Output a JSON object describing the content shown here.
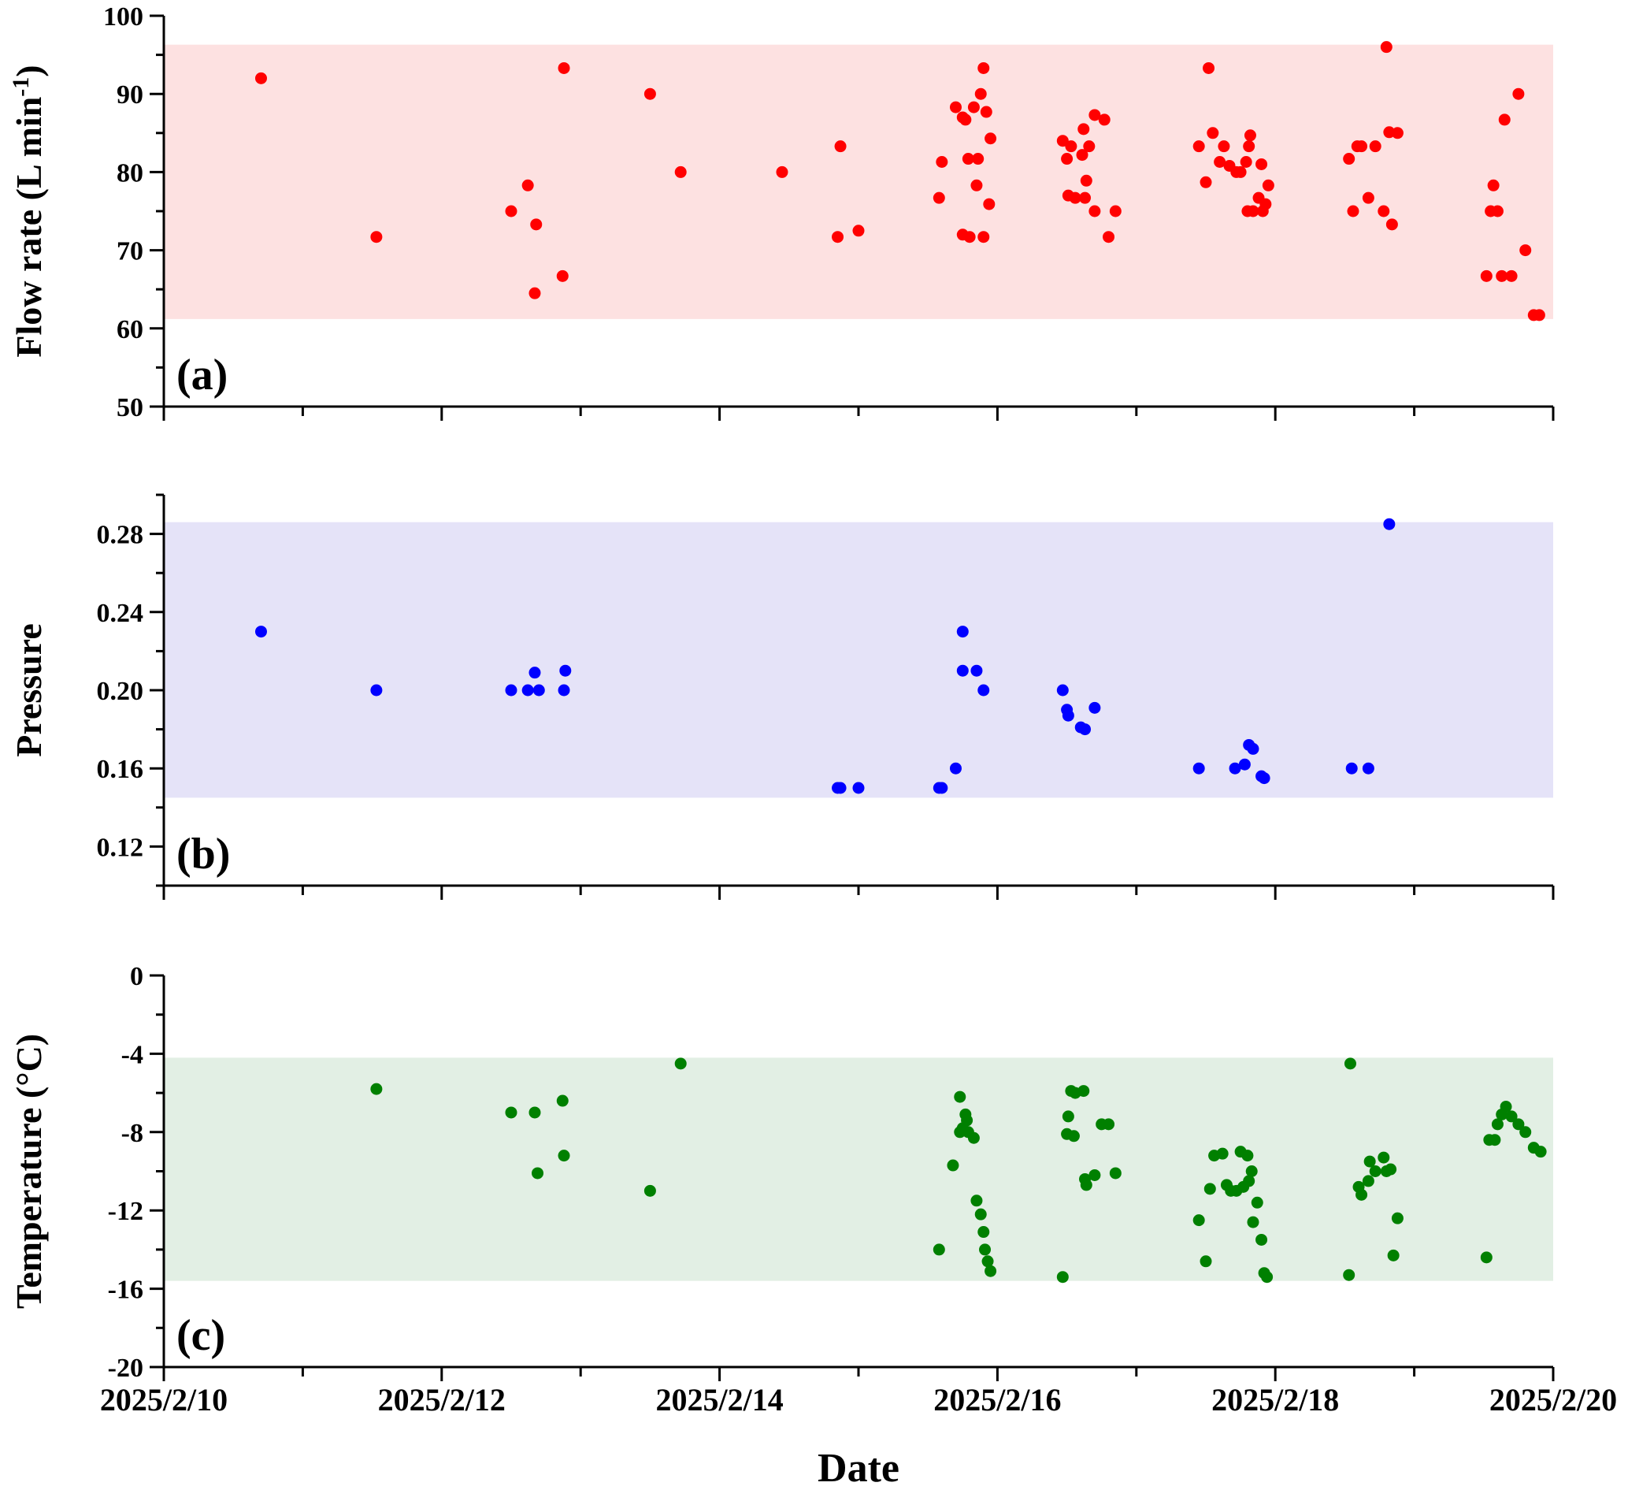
{
  "chart_data": [
    {
      "type": "scatter",
      "panel_label": "(a)",
      "ylabel": "Flow rate (L min",
      "ylabel_sup": "-1",
      "ylim": [
        50,
        100
      ],
      "yticks": [
        {
          "value": 50,
          "label": "50"
        },
        {
          "value": 60,
          "label": "60"
        },
        {
          "value": 70,
          "label": "70"
        },
        {
          "value": 80,
          "label": "80"
        },
        {
          "value": 90,
          "label": "90"
        },
        {
          "value": 100,
          "label": "100"
        }
      ],
      "band": [
        61.2,
        96.3
      ],
      "color": "#ff0000",
      "band_color": "#fde1e1",
      "points": [
        [
          10.7,
          92
        ],
        [
          11.53,
          71.7
        ],
        [
          12.5,
          75
        ],
        [
          12.62,
          78.3
        ],
        [
          12.67,
          64.5
        ],
        [
          12.68,
          73.3
        ],
        [
          12.87,
          66.7
        ],
        [
          12.88,
          93.3
        ],
        [
          13.5,
          90
        ],
        [
          13.72,
          80
        ],
        [
          14.45,
          80
        ],
        [
          14.85,
          71.7
        ],
        [
          14.87,
          83.3
        ],
        [
          15.0,
          72.5
        ],
        [
          15.58,
          76.7
        ],
        [
          15.6,
          81.3
        ],
        [
          15.7,
          88.3
        ],
        [
          15.75,
          72
        ],
        [
          15.75,
          87
        ],
        [
          15.77,
          86.7
        ],
        [
          15.79,
          81.7
        ],
        [
          15.8,
          71.7
        ],
        [
          15.83,
          88.3
        ],
        [
          15.85,
          78.3
        ],
        [
          15.86,
          81.7
        ],
        [
          15.88,
          90
        ],
        [
          15.9,
          71.7
        ],
        [
          15.9,
          93.3
        ],
        [
          15.92,
          87.7
        ],
        [
          15.94,
          75.9
        ],
        [
          15.95,
          84.3
        ],
        [
          16.47,
          84
        ],
        [
          16.5,
          81.7
        ],
        [
          16.51,
          77
        ],
        [
          16.53,
          83.3
        ],
        [
          16.56,
          76.7
        ],
        [
          16.61,
          82.2
        ],
        [
          16.62,
          85.5
        ],
        [
          16.63,
          76.7
        ],
        [
          16.64,
          78.9
        ],
        [
          16.66,
          83.3
        ],
        [
          16.7,
          75
        ],
        [
          16.7,
          87.3
        ],
        [
          16.77,
          86.7
        ],
        [
          16.8,
          71.7
        ],
        [
          16.85,
          75
        ],
        [
          17.45,
          83.3
        ],
        [
          17.5,
          78.7
        ],
        [
          17.52,
          93.3
        ],
        [
          17.55,
          85
        ],
        [
          17.6,
          81.3
        ],
        [
          17.63,
          83.3
        ],
        [
          17.67,
          80.8
        ],
        [
          17.72,
          80
        ],
        [
          17.75,
          80
        ],
        [
          17.79,
          81.3
        ],
        [
          17.8,
          75
        ],
        [
          17.81,
          83.3
        ],
        [
          17.82,
          84.7
        ],
        [
          17.84,
          75
        ],
        [
          17.88,
          76.7
        ],
        [
          17.9,
          81
        ],
        [
          17.91,
          75
        ],
        [
          17.93,
          75.9
        ],
        [
          17.95,
          78.3
        ],
        [
          18.53,
          81.7
        ],
        [
          18.56,
          75
        ],
        [
          18.59,
          83.3
        ],
        [
          18.62,
          83.3
        ],
        [
          18.67,
          76.7
        ],
        [
          18.72,
          83.3
        ],
        [
          18.78,
          75
        ],
        [
          18.8,
          96
        ],
        [
          18.82,
          85.1
        ],
        [
          18.84,
          73.3
        ],
        [
          18.88,
          85
        ],
        [
          19.52,
          66.7
        ],
        [
          19.55,
          75
        ],
        [
          19.57,
          78.3
        ],
        [
          19.6,
          75
        ],
        [
          19.63,
          66.7
        ],
        [
          19.65,
          86.7
        ],
        [
          19.7,
          66.7
        ],
        [
          19.75,
          90
        ],
        [
          19.8,
          70
        ],
        [
          19.86,
          61.7
        ],
        [
          19.9,
          61.7
        ]
      ]
    },
    {
      "type": "scatter",
      "panel_label": "(b)",
      "ylabel": "Pressure",
      "ylim": [
        0.1,
        0.3
      ],
      "yticks": [
        {
          "value": 0.12,
          "label": "0.12"
        },
        {
          "value": 0.16,
          "label": "0.16"
        },
        {
          "value": 0.2,
          "label": "0.20"
        },
        {
          "value": 0.24,
          "label": "0.24"
        },
        {
          "value": 0.28,
          "label": "0.28"
        }
      ],
      "band": [
        0.145,
        0.286
      ],
      "color": "#0000ff",
      "band_color": "#e5e3f8",
      "points": [
        [
          10.7,
          0.23
        ],
        [
          11.53,
          0.2
        ],
        [
          12.5,
          0.2
        ],
        [
          12.62,
          0.2
        ],
        [
          12.67,
          0.209
        ],
        [
          12.7,
          0.2
        ],
        [
          12.88,
          0.2
        ],
        [
          12.89,
          0.21
        ],
        [
          14.85,
          0.15
        ],
        [
          14.87,
          0.15
        ],
        [
          15.0,
          0.15
        ],
        [
          15.58,
          0.15
        ],
        [
          15.6,
          0.15
        ],
        [
          15.7,
          0.16
        ],
        [
          15.75,
          0.23
        ],
        [
          15.75,
          0.21
        ],
        [
          15.85,
          0.21
        ],
        [
          15.9,
          0.2
        ],
        [
          16.47,
          0.2
        ],
        [
          16.5,
          0.19
        ],
        [
          16.51,
          0.187
        ],
        [
          16.6,
          0.181
        ],
        [
          16.63,
          0.18
        ],
        [
          16.7,
          0.191
        ],
        [
          17.45,
          0.16
        ],
        [
          17.71,
          0.16
        ],
        [
          17.78,
          0.162
        ],
        [
          17.81,
          0.172
        ],
        [
          17.84,
          0.17
        ],
        [
          17.9,
          0.156
        ],
        [
          17.92,
          0.155
        ],
        [
          18.55,
          0.16
        ],
        [
          18.67,
          0.16
        ],
        [
          18.82,
          0.285
        ]
      ]
    },
    {
      "type": "scatter",
      "panel_label": "(c)",
      "ylabel": "Temperature (°C)",
      "ylim": [
        -20,
        0
      ],
      "yticks": [
        {
          "value": -20,
          "label": "-20"
        },
        {
          "value": -16,
          "label": "-16"
        },
        {
          "value": -12,
          "label": "-12"
        },
        {
          "value": -8,
          "label": "-8"
        },
        {
          "value": -4,
          "label": "-4"
        },
        {
          "value": 0,
          "label": "0"
        }
      ],
      "band": [
        -15.6,
        -4.2
      ],
      "color": "#008000",
      "band_color": "#e2efe4",
      "points": [
        [
          11.53,
          -5.8
        ],
        [
          12.5,
          -7
        ],
        [
          12.67,
          -7
        ],
        [
          12.69,
          -10.1
        ],
        [
          12.87,
          -6.4
        ],
        [
          12.88,
          -9.2
        ],
        [
          13.5,
          -11
        ],
        [
          13.72,
          -4.5
        ],
        [
          15.58,
          -14
        ],
        [
          15.68,
          -9.7
        ],
        [
          15.73,
          -6.2
        ],
        [
          15.73,
          -8
        ],
        [
          15.75,
          -7.8
        ],
        [
          15.77,
          -7.1
        ],
        [
          15.78,
          -7.4
        ],
        [
          15.79,
          -8
        ],
        [
          15.83,
          -8.3
        ],
        [
          15.85,
          -11.5
        ],
        [
          15.88,
          -12.2
        ],
        [
          15.9,
          -13.1
        ],
        [
          15.91,
          -14
        ],
        [
          15.93,
          -14.6
        ],
        [
          15.95,
          -15.1
        ],
        [
          16.47,
          -15.4
        ],
        [
          16.5,
          -8.1
        ],
        [
          16.51,
          -7.2
        ],
        [
          16.53,
          -5.9
        ],
        [
          16.55,
          -8.2
        ],
        [
          16.56,
          -6
        ],
        [
          16.62,
          -5.9
        ],
        [
          16.63,
          -10.4
        ],
        [
          16.64,
          -10.7
        ],
        [
          16.7,
          -10.2
        ],
        [
          16.75,
          -7.6
        ],
        [
          16.8,
          -7.6
        ],
        [
          16.85,
          -10.1
        ],
        [
          17.45,
          -12.5
        ],
        [
          17.5,
          -14.6
        ],
        [
          17.53,
          -10.9
        ],
        [
          17.56,
          -9.2
        ],
        [
          17.62,
          -9.1
        ],
        [
          17.65,
          -10.7
        ],
        [
          17.68,
          -11
        ],
        [
          17.72,
          -11
        ],
        [
          17.75,
          -9
        ],
        [
          17.77,
          -10.8
        ],
        [
          17.8,
          -9.2
        ],
        [
          17.81,
          -10.5
        ],
        [
          17.83,
          -10
        ],
        [
          17.84,
          -12.6
        ],
        [
          17.87,
          -11.6
        ],
        [
          17.9,
          -13.5
        ],
        [
          17.92,
          -15.2
        ],
        [
          17.94,
          -15.4
        ],
        [
          18.53,
          -15.3
        ],
        [
          18.54,
          -4.5
        ],
        [
          18.6,
          -10.8
        ],
        [
          18.62,
          -11.2
        ],
        [
          18.67,
          -10.5
        ],
        [
          18.68,
          -9.5
        ],
        [
          18.72,
          -10
        ],
        [
          18.78,
          -9.3
        ],
        [
          18.8,
          -10
        ],
        [
          18.83,
          -9.9
        ],
        [
          18.85,
          -14.3
        ],
        [
          18.88,
          -12.4
        ],
        [
          19.52,
          -14.4
        ],
        [
          19.54,
          -8.4
        ],
        [
          19.58,
          -8.4
        ],
        [
          19.6,
          -7.6
        ],
        [
          19.63,
          -7.1
        ],
        [
          19.66,
          -6.7
        ],
        [
          19.7,
          -7.2
        ],
        [
          19.75,
          -7.6
        ],
        [
          19.8,
          -8
        ],
        [
          19.86,
          -8.8
        ],
        [
          19.91,
          -9
        ]
      ]
    }
  ],
  "x_axis": {
    "label": "Date",
    "xlim": [
      10,
      20
    ],
    "ticks": [
      {
        "value": 10,
        "label": "2025/2/10"
      },
      {
        "value": 12,
        "label": "2025/2/12"
      },
      {
        "value": 14,
        "label": "2025/2/14"
      },
      {
        "value": 16,
        "label": "2025/2/16"
      },
      {
        "value": 18,
        "label": "2025/2/18"
      },
      {
        "value": 20,
        "label": "2025/2/20"
      }
    ],
    "minor_ticks": [
      11,
      13,
      15,
      17,
      19
    ]
  }
}
